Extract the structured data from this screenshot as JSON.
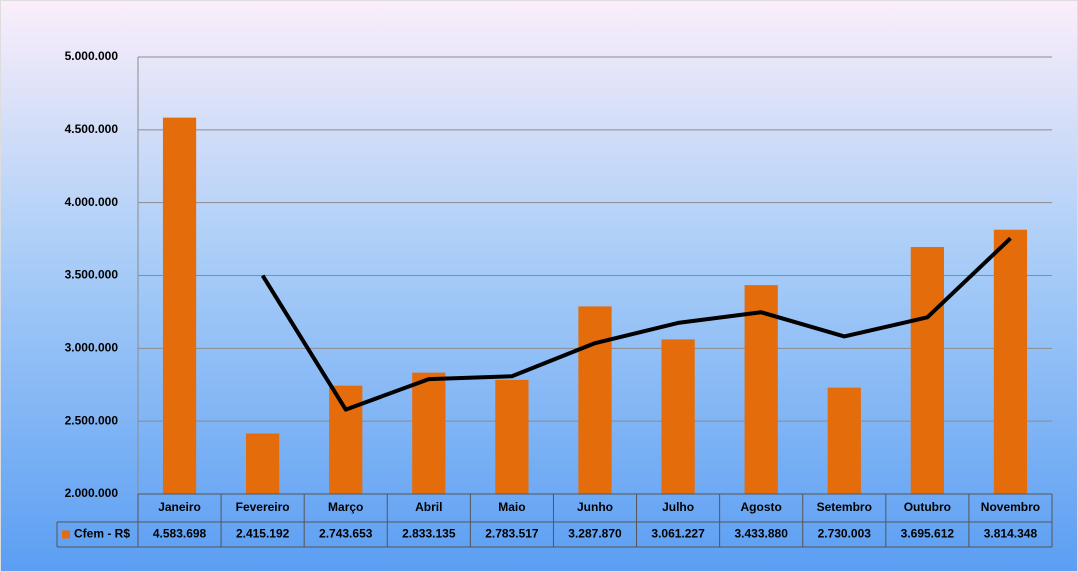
{
  "chart_data": {
    "type": "bar",
    "categories": [
      "Janeiro",
      "Fevereiro",
      "Março",
      "Abril",
      "Maio",
      "Junho",
      "Julho",
      "Agosto",
      "Setembro",
      "Outubro",
      "Novembro"
    ],
    "series": [
      {
        "name": "Cfem - R$",
        "color": "#e46c0a",
        "values": [
          4583698,
          2415192,
          2743653,
          2833135,
          2783517,
          3287870,
          3061227,
          3433880,
          2730003,
          3695612,
          3814348
        ],
        "value_labels": [
          "4.583.698",
          "2.415.192",
          "2.743.653",
          "2.833.135",
          "2.783.517",
          "3.287.870",
          "3.061.227",
          "3.433.880",
          "2.730.003",
          "3.695.612",
          "3.814.348"
        ]
      }
    ],
    "trendline": {
      "color": "#000000",
      "values": [
        null,
        3499445,
        2579422,
        2788394,
        2808326,
        3035693,
        3174548,
        3247553,
        3081941,
        3212807,
        3754980
      ]
    },
    "ylim": [
      2000000,
      5000000
    ],
    "yticks": [
      {
        "value": 2000000,
        "label": "2.000.000"
      },
      {
        "value": 2500000,
        "label": "2.500.000"
      },
      {
        "value": 3000000,
        "label": "3.000.000"
      },
      {
        "value": 3500000,
        "label": "3.500.000"
      },
      {
        "value": 4000000,
        "label": "4.000.000"
      },
      {
        "value": 4500000,
        "label": "4.500.000"
      },
      {
        "value": 5000000,
        "label": "5.000.000"
      }
    ],
    "grid": true,
    "data_table": true
  }
}
